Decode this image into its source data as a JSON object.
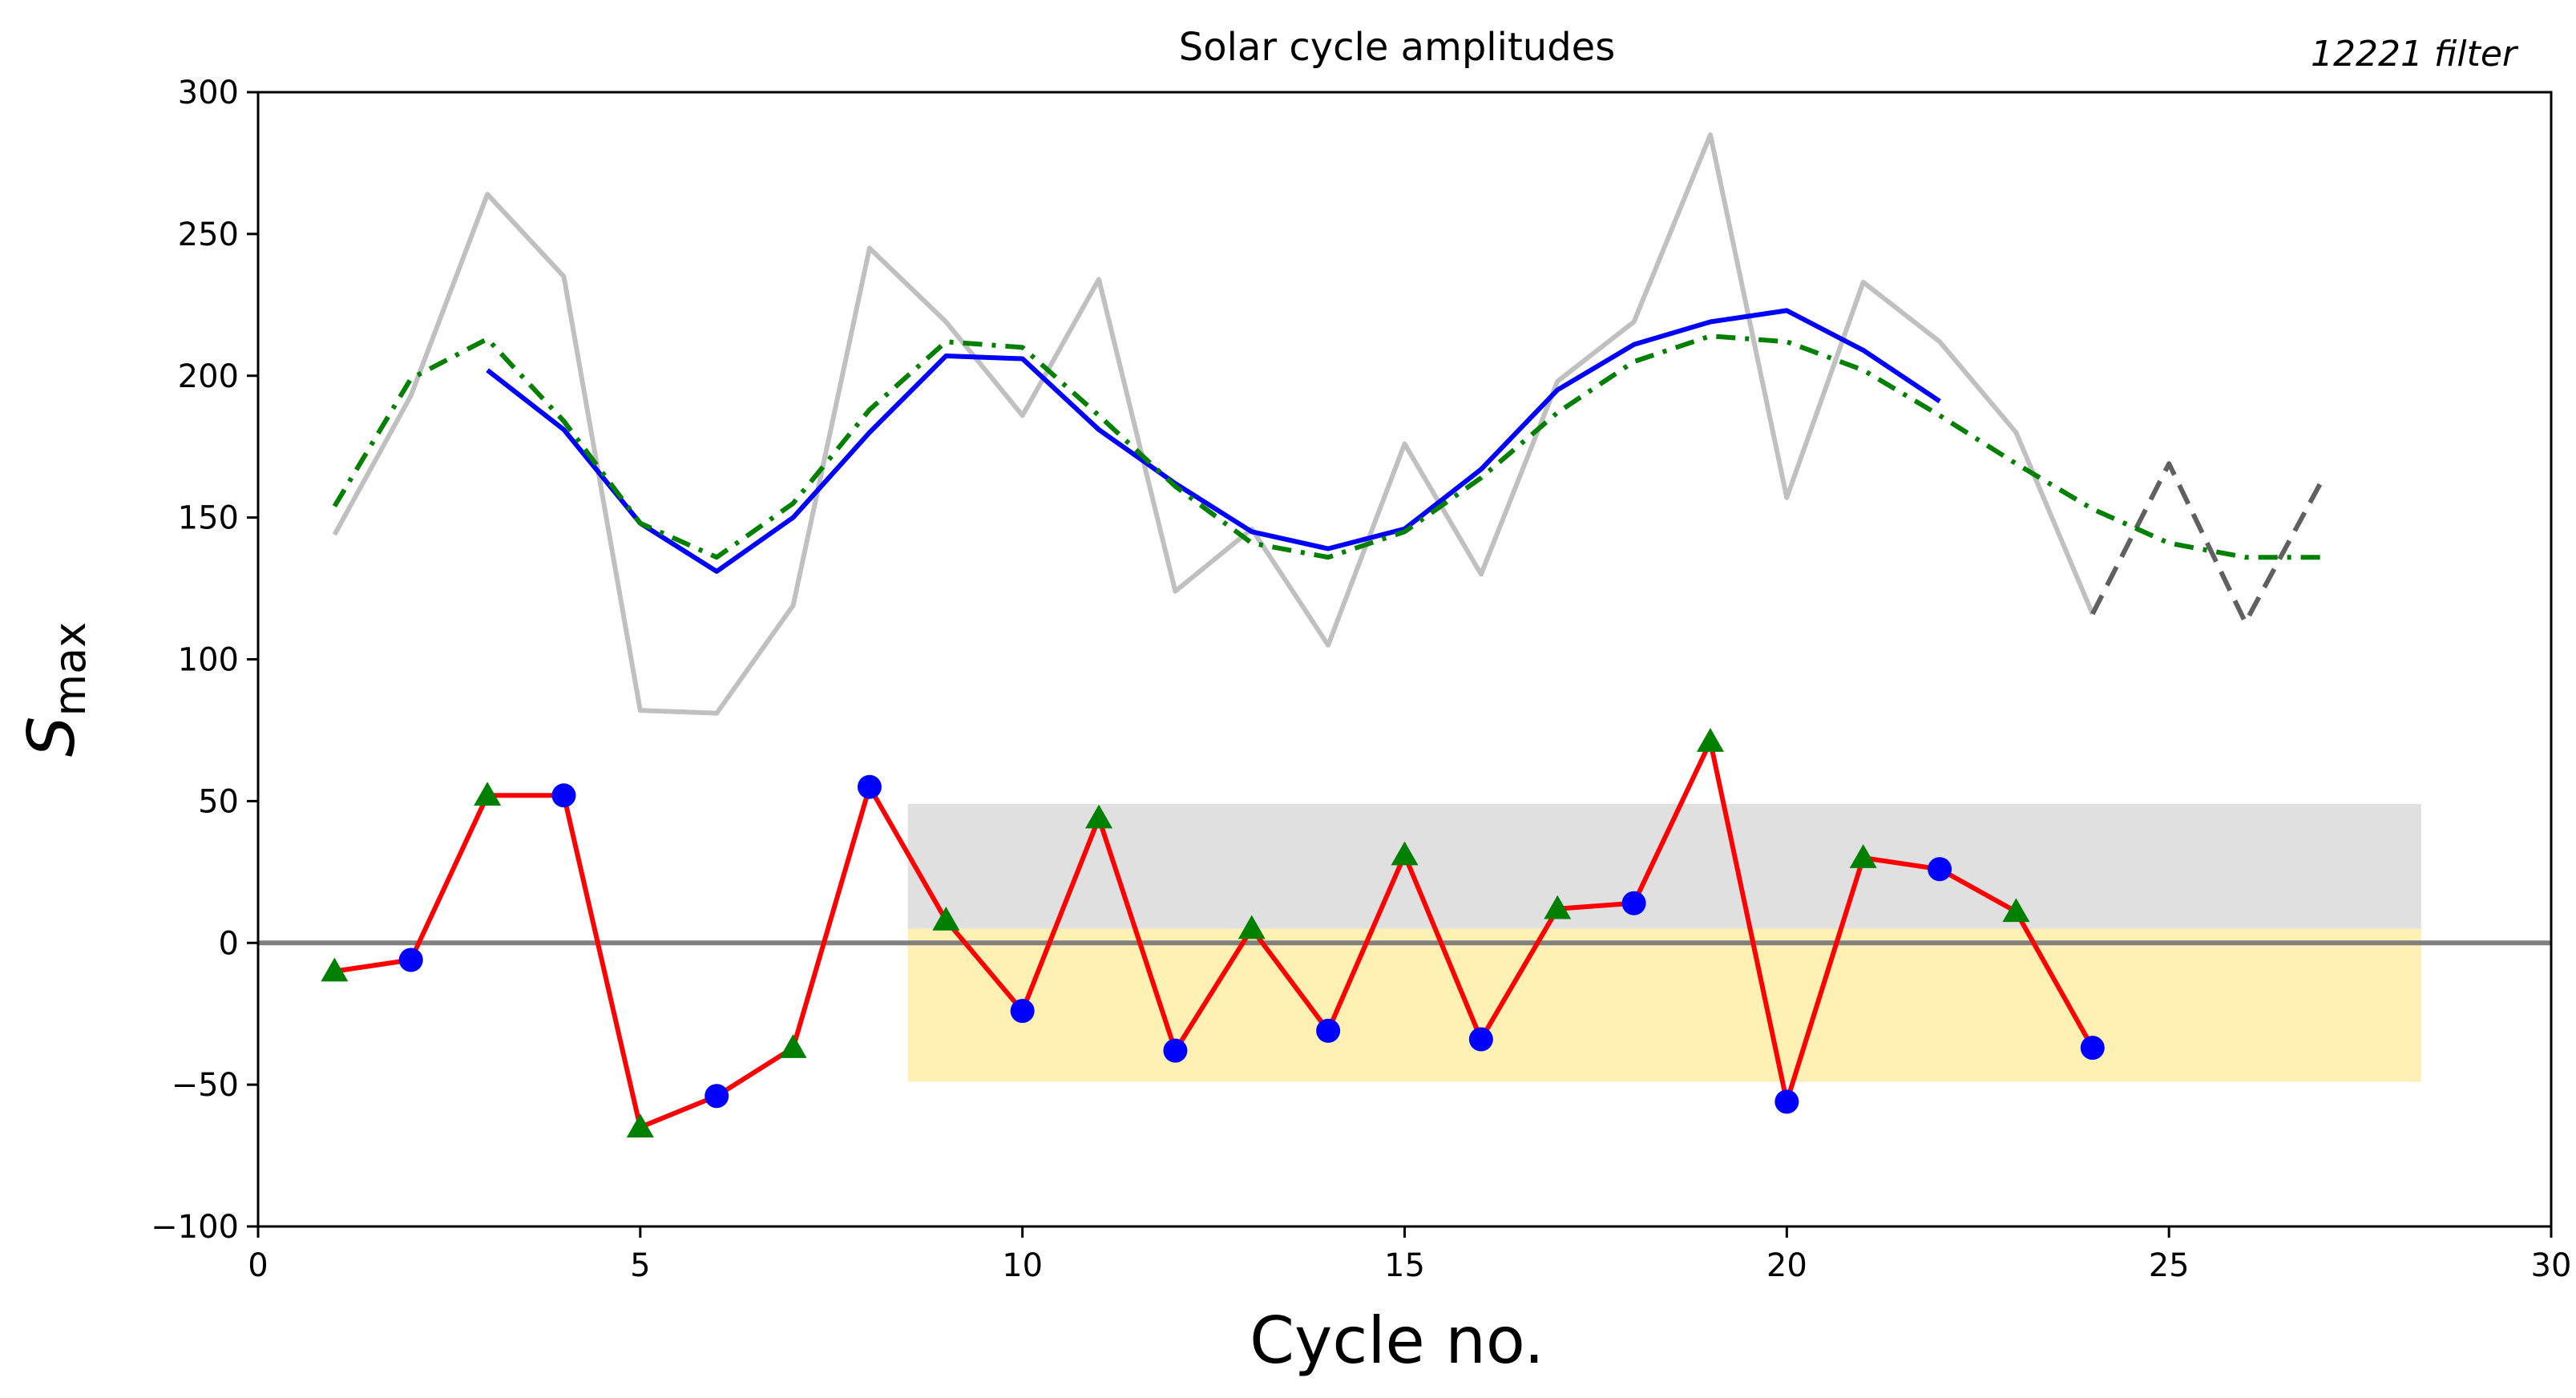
{
  "chart_data": {
    "type": "line",
    "title": "Solar cycle amplitudes",
    "annotation": "12221 filter",
    "xlabel": "Cycle no.",
    "ylabel": "S",
    "ylabel_sub": "max",
    "xlim": [
      0,
      30
    ],
    "ylim": [
      -100,
      300
    ],
    "xticks": [
      0,
      5,
      10,
      15,
      20,
      25,
      30
    ],
    "yticks": [
      -100,
      -50,
      0,
      50,
      100,
      150,
      200,
      250,
      300
    ],
    "grid": false,
    "bands": [
      {
        "name": "upper-band",
        "x": [
          8.5,
          28.3
        ],
        "y": [
          5,
          49
        ],
        "color": "#e0e0e0"
      },
      {
        "name": "lower-band",
        "x": [
          8.5,
          28.3
        ],
        "y": [
          -49,
          5
        ],
        "color": "#fff0b3"
      }
    ],
    "hline": {
      "y": 0,
      "color": "#808080"
    },
    "series": [
      {
        "name": "observed-amplitudes",
        "style": "solid",
        "color": "#c0c0c0",
        "x": [
          1,
          2,
          3,
          4,
          5,
          6,
          7,
          8,
          9,
          10,
          11,
          12,
          13,
          14,
          15,
          16,
          17,
          18,
          19,
          20,
          21,
          22,
          23,
          24
        ],
        "values": [
          144,
          193,
          264,
          235,
          82,
          81,
          119,
          245,
          219,
          186,
          234,
          124,
          146,
          105,
          176,
          130,
          198,
          219,
          285,
          157,
          233,
          212,
          180,
          116
        ]
      },
      {
        "name": "predicted-amplitudes",
        "style": "dashed",
        "color": "#606060",
        "x": [
          24,
          25,
          26,
          27
        ],
        "values": [
          116,
          169,
          113,
          163
        ]
      },
      {
        "name": "filtered-12221",
        "style": "solid",
        "color": "#0000ff",
        "x": [
          3,
          4,
          5,
          6,
          7,
          8,
          9,
          10,
          11,
          12,
          13,
          14,
          15,
          16,
          17,
          18,
          19,
          20,
          21,
          22
        ],
        "values": [
          202,
          181,
          148,
          131,
          150,
          180,
          207,
          206,
          181,
          162,
          145,
          139,
          146,
          167,
          195,
          211,
          219,
          223,
          209,
          191
        ]
      },
      {
        "name": "smooth-fit",
        "style": "dashdot",
        "color": "#008000",
        "x": [
          1,
          2,
          3,
          4,
          5,
          6,
          7,
          8,
          9,
          10,
          11,
          12,
          13,
          14,
          15,
          16,
          17,
          18,
          19,
          20,
          21,
          22,
          23,
          24,
          25,
          26,
          27
        ],
        "values": [
          154,
          199,
          213,
          184,
          148,
          136,
          155,
          188,
          212,
          210,
          186,
          161,
          141,
          136,
          145,
          164,
          187,
          205,
          214,
          212,
          202,
          186,
          169,
          153,
          141,
          136,
          136
        ]
      },
      {
        "name": "residuals",
        "style": "solid",
        "color": "#ff0000",
        "x": [
          1,
          2,
          3,
          4,
          5,
          6,
          7,
          8,
          9,
          10,
          11,
          12,
          13,
          14,
          15,
          16,
          17,
          18,
          19,
          20,
          21,
          22,
          23,
          24
        ],
        "values": [
          -10,
          -6,
          52,
          52,
          -65,
          -54,
          -37,
          55,
          8,
          -24,
          44,
          -38,
          5,
          -31,
          31,
          -34,
          12,
          14,
          71,
          -56,
          30,
          26,
          11,
          -37
        ]
      }
    ],
    "markers": [
      {
        "cycle": 1,
        "value": -10,
        "shape": "triangle"
      },
      {
        "cycle": 2,
        "value": -6,
        "shape": "circle"
      },
      {
        "cycle": 3,
        "value": 52,
        "shape": "triangle"
      },
      {
        "cycle": 4,
        "value": 52,
        "shape": "circle"
      },
      {
        "cycle": 5,
        "value": -65,
        "shape": "triangle"
      },
      {
        "cycle": 6,
        "value": -54,
        "shape": "circle"
      },
      {
        "cycle": 7,
        "value": -37,
        "shape": "triangle"
      },
      {
        "cycle": 8,
        "value": 55,
        "shape": "circle"
      },
      {
        "cycle": 9,
        "value": 8,
        "shape": "triangle"
      },
      {
        "cycle": 10,
        "value": -24,
        "shape": "circle"
      },
      {
        "cycle": 11,
        "value": 44,
        "shape": "triangle"
      },
      {
        "cycle": 12,
        "value": -38,
        "shape": "circle"
      },
      {
        "cycle": 13,
        "value": 5,
        "shape": "triangle"
      },
      {
        "cycle": 14,
        "value": -31,
        "shape": "circle"
      },
      {
        "cycle": 15,
        "value": 31,
        "shape": "triangle"
      },
      {
        "cycle": 16,
        "value": -34,
        "shape": "circle"
      },
      {
        "cycle": 17,
        "value": 12,
        "shape": "triangle"
      },
      {
        "cycle": 18,
        "value": 14,
        "shape": "circle"
      },
      {
        "cycle": 19,
        "value": 71,
        "shape": "triangle"
      },
      {
        "cycle": 20,
        "value": -56,
        "shape": "circle"
      },
      {
        "cycle": 21,
        "value": 30,
        "shape": "triangle"
      },
      {
        "cycle": 22,
        "value": 26,
        "shape": "circle"
      },
      {
        "cycle": 23,
        "value": 11,
        "shape": "triangle"
      },
      {
        "cycle": 24,
        "value": -37,
        "shape": "circle"
      }
    ],
    "marker_colors": {
      "circle": "#0000ff",
      "triangle": "#008000"
    }
  }
}
